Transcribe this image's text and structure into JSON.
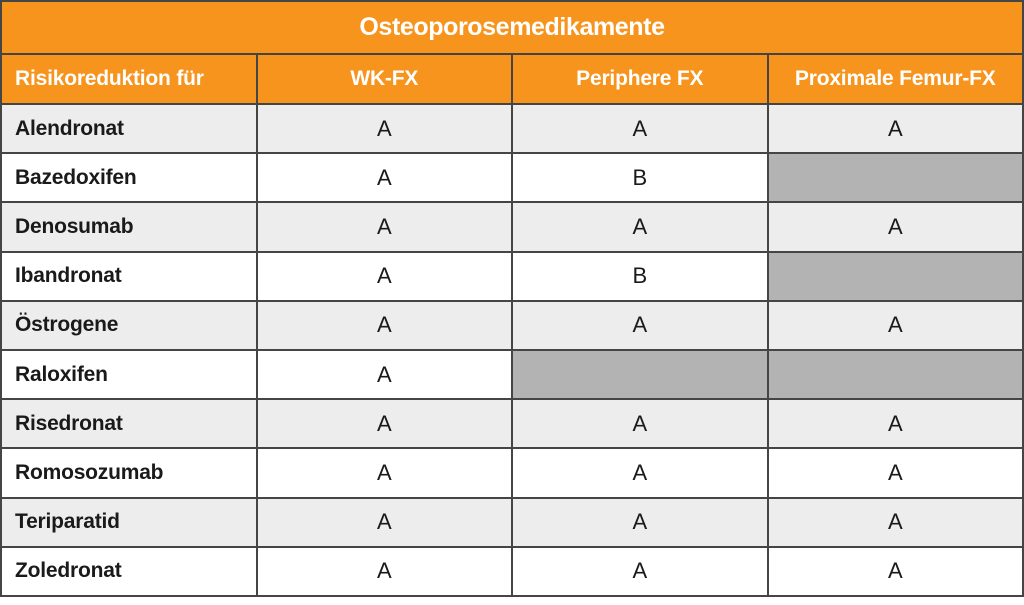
{
  "chart_data": {
    "type": "table",
    "title": "Osteoporosemedikamente",
    "columns": [
      "Risikoreduktion für",
      "WK-FX",
      "Periphere FX",
      "Proximale Femur-FX"
    ],
    "rows": [
      [
        "Alendronat",
        "A",
        "A",
        "A"
      ],
      [
        "Bazedoxifen",
        "A",
        "B",
        null
      ],
      [
        "Denosumab",
        "A",
        "A",
        "A"
      ],
      [
        "Ibandronat",
        "A",
        "B",
        null
      ],
      [
        "Östrogene",
        "A",
        "A",
        "A"
      ],
      [
        "Raloxifen",
        "A",
        null,
        null
      ],
      [
        "Risedronat",
        "A",
        "A",
        "A"
      ],
      [
        "Romosozumab",
        "A",
        "A",
        "A"
      ],
      [
        "Teriparatid",
        "A",
        "A",
        "A"
      ],
      [
        "Zoledronat",
        "A",
        "A",
        "A"
      ]
    ]
  },
  "colors": {
    "header_bg": "#F7941D",
    "header_text": "#FFFFFF",
    "row_bg": "#FFFFFF",
    "row_alt_bg": "#EDEDED",
    "empty_cell_bg": "#B3B3B3",
    "border": "#454545",
    "body_text": "#1A1A1A"
  }
}
